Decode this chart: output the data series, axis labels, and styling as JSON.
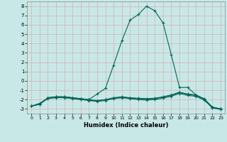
{
  "xlabel": "Humidex (Indice chaleur)",
  "xlim": [
    -0.5,
    23.5
  ],
  "ylim": [
    -3.5,
    8.5
  ],
  "yticks": [
    -3,
    -2,
    -1,
    0,
    1,
    2,
    3,
    4,
    5,
    6,
    7,
    8
  ],
  "xticks": [
    0,
    1,
    2,
    3,
    4,
    5,
    6,
    7,
    8,
    9,
    10,
    11,
    12,
    13,
    14,
    15,
    16,
    17,
    18,
    19,
    20,
    21,
    22,
    23
  ],
  "bg_color": "#c8e8e8",
  "grid_color": "#d4b8b8",
  "line_color": "#006858",
  "line1_x": [
    0,
    1,
    2,
    3,
    4,
    5,
    6,
    7,
    8,
    9,
    10,
    11,
    12,
    13,
    14,
    15,
    16,
    17,
    18,
    19,
    20,
    21,
    22,
    23
  ],
  "line1_y": [
    -2.7,
    -2.5,
    -1.8,
    -1.7,
    -1.7,
    -1.8,
    -1.9,
    -2.0,
    -1.4,
    -0.8,
    1.7,
    4.3,
    6.5,
    7.1,
    8.0,
    7.5,
    6.2,
    2.8,
    -0.7,
    -0.7,
    -1.5,
    -2.0,
    -2.8,
    -3.0
  ],
  "line2_x": [
    0,
    1,
    2,
    3,
    4,
    5,
    6,
    7,
    8,
    9,
    10,
    11,
    12,
    13,
    14,
    15,
    16,
    17,
    18,
    19,
    20,
    21,
    22,
    23
  ],
  "line2_y": [
    -2.7,
    -2.5,
    -1.8,
    -1.7,
    -1.7,
    -1.8,
    -1.9,
    -2.0,
    -2.1,
    -2.0,
    -1.8,
    -1.7,
    -1.8,
    -1.85,
    -1.9,
    -1.85,
    -1.7,
    -1.5,
    -1.2,
    -1.4,
    -1.5,
    -1.9,
    -2.8,
    -3.0
  ],
  "line3_x": [
    0,
    1,
    2,
    3,
    4,
    5,
    6,
    7,
    8,
    9,
    10,
    11,
    12,
    13,
    14,
    15,
    16,
    17,
    18,
    19,
    20,
    21,
    22,
    23
  ],
  "line3_y": [
    -2.7,
    -2.4,
    -1.85,
    -1.75,
    -1.75,
    -1.85,
    -1.95,
    -2.05,
    -2.15,
    -2.0,
    -1.85,
    -1.75,
    -1.85,
    -1.9,
    -1.95,
    -1.9,
    -1.75,
    -1.55,
    -1.25,
    -1.45,
    -1.55,
    -1.95,
    -2.85,
    -3.0
  ],
  "line4_x": [
    0,
    1,
    2,
    3,
    4,
    5,
    6,
    7,
    8,
    9,
    10,
    11,
    12,
    13,
    14,
    15,
    16,
    17,
    18,
    19,
    20,
    21,
    22,
    23
  ],
  "line4_y": [
    -2.7,
    -2.5,
    -1.9,
    -1.8,
    -1.8,
    -1.9,
    -2.0,
    -2.1,
    -2.2,
    -2.1,
    -1.9,
    -1.8,
    -1.9,
    -2.0,
    -2.05,
    -2.0,
    -1.85,
    -1.65,
    -1.35,
    -1.55,
    -1.65,
    -2.05,
    -2.9,
    -3.05
  ]
}
